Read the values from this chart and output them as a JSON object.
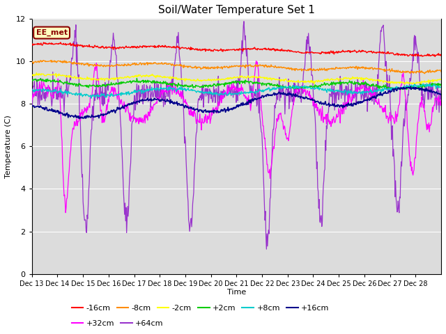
{
  "title": "Soil/Water Temperature Set 1",
  "xlabel": "Time",
  "ylabel": "Temperature (C)",
  "xlim": [
    0,
    16
  ],
  "ylim": [
    0,
    12
  ],
  "yticks": [
    0,
    2,
    4,
    6,
    8,
    10,
    12
  ],
  "xtick_labels": [
    "Dec 13",
    "Dec 14",
    "Dec 15",
    "Dec 16",
    "Dec 17",
    "Dec 18",
    "Dec 19",
    "Dec 20",
    "Dec 21",
    "Dec 22",
    "Dec 23",
    "Dec 24",
    "Dec 25",
    "Dec 26",
    "Dec 27",
    "Dec 28"
  ],
  "background_color": "#dcdcdc",
  "annotation_text": "EE_met",
  "annotation_bg": "#ffffc0",
  "annotation_border": "#8b0000",
  "legend_order": [
    "-16cm",
    "-8cm",
    "-2cm",
    "+2cm",
    "+8cm",
    "+16cm",
    "+32cm",
    "+64cm"
  ],
  "colors": {
    "-16cm": "#ff0000",
    "-8cm": "#ff8c00",
    "-2cm": "#ffff00",
    "+2cm": "#00cc00",
    "+8cm": "#00cccc",
    "+16cm": "#00008b",
    "+32cm": "#ff00ff",
    "+64cm": "#9933cc"
  }
}
